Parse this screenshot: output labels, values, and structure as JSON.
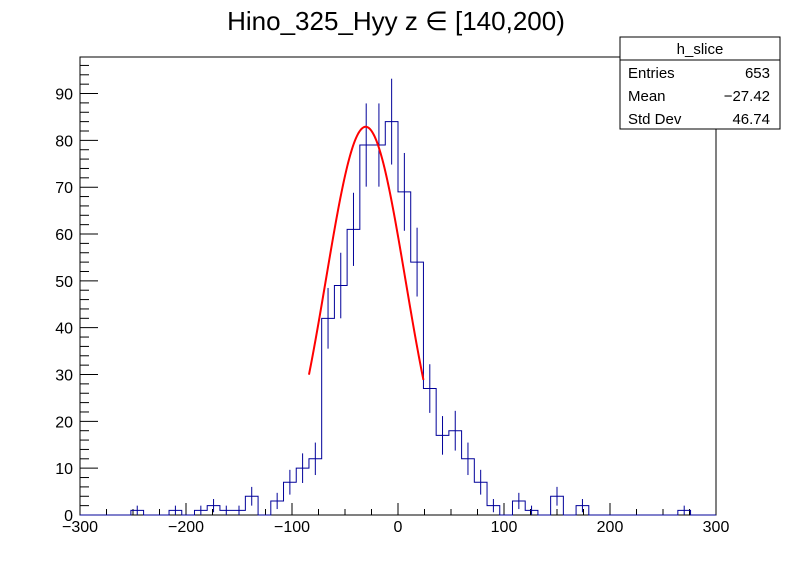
{
  "chart_data": {
    "type": "histogram",
    "title": "Hino_325_Hyy z  ∈ [140,200)",
    "xlim": [
      -300,
      300
    ],
    "ylim": [
      0,
      97.8
    ],
    "x_ticks": [
      -300,
      -200,
      -100,
      0,
      100,
      200,
      300
    ],
    "y_ticks": [
      0,
      10,
      20,
      30,
      40,
      50,
      60,
      70,
      80,
      90
    ],
    "bin_width": 12,
    "bin_low_edges": [
      -300,
      -288,
      -276,
      -264,
      -252,
      -240,
      -228,
      -216,
      -204,
      -192,
      -180,
      -168,
      -156,
      -144,
      -132,
      -120,
      -108,
      -96,
      -84,
      -72,
      -60,
      -48,
      -36,
      -24,
      -12,
      0,
      12,
      24,
      36,
      48,
      60,
      72,
      84,
      96,
      108,
      120,
      132,
      144,
      156,
      168,
      180,
      192,
      204,
      216,
      228,
      240,
      252,
      264,
      276,
      288
    ],
    "counts": [
      0,
      0,
      0,
      0,
      1,
      0,
      0,
      1,
      0,
      1,
      2,
      1,
      1,
      4,
      0,
      3,
      7,
      10,
      12,
      42,
      49,
      61,
      79,
      79,
      84,
      69,
      54,
      27,
      17,
      18,
      12,
      7,
      2,
      0,
      3,
      1,
      0,
      4,
      0,
      2,
      0,
      0,
      0,
      0,
      0,
      0,
      0,
      1,
      0,
      0
    ],
    "fit": {
      "type": "gaussian",
      "color": "#ff0000",
      "range": [
        -84,
        24
      ],
      "constant": 82.9,
      "mean": -30.5,
      "sigma": 37.5
    },
    "colors": {
      "histogram": "#000099",
      "fit": "#ff0000"
    },
    "stats_box": {
      "title": "h_slice",
      "rows": [
        {
          "label": "Entries",
          "value": "653"
        },
        {
          "label": "Mean",
          "value": "−27.42"
        },
        {
          "label": "Std Dev",
          "value": "46.74"
        }
      ]
    }
  }
}
